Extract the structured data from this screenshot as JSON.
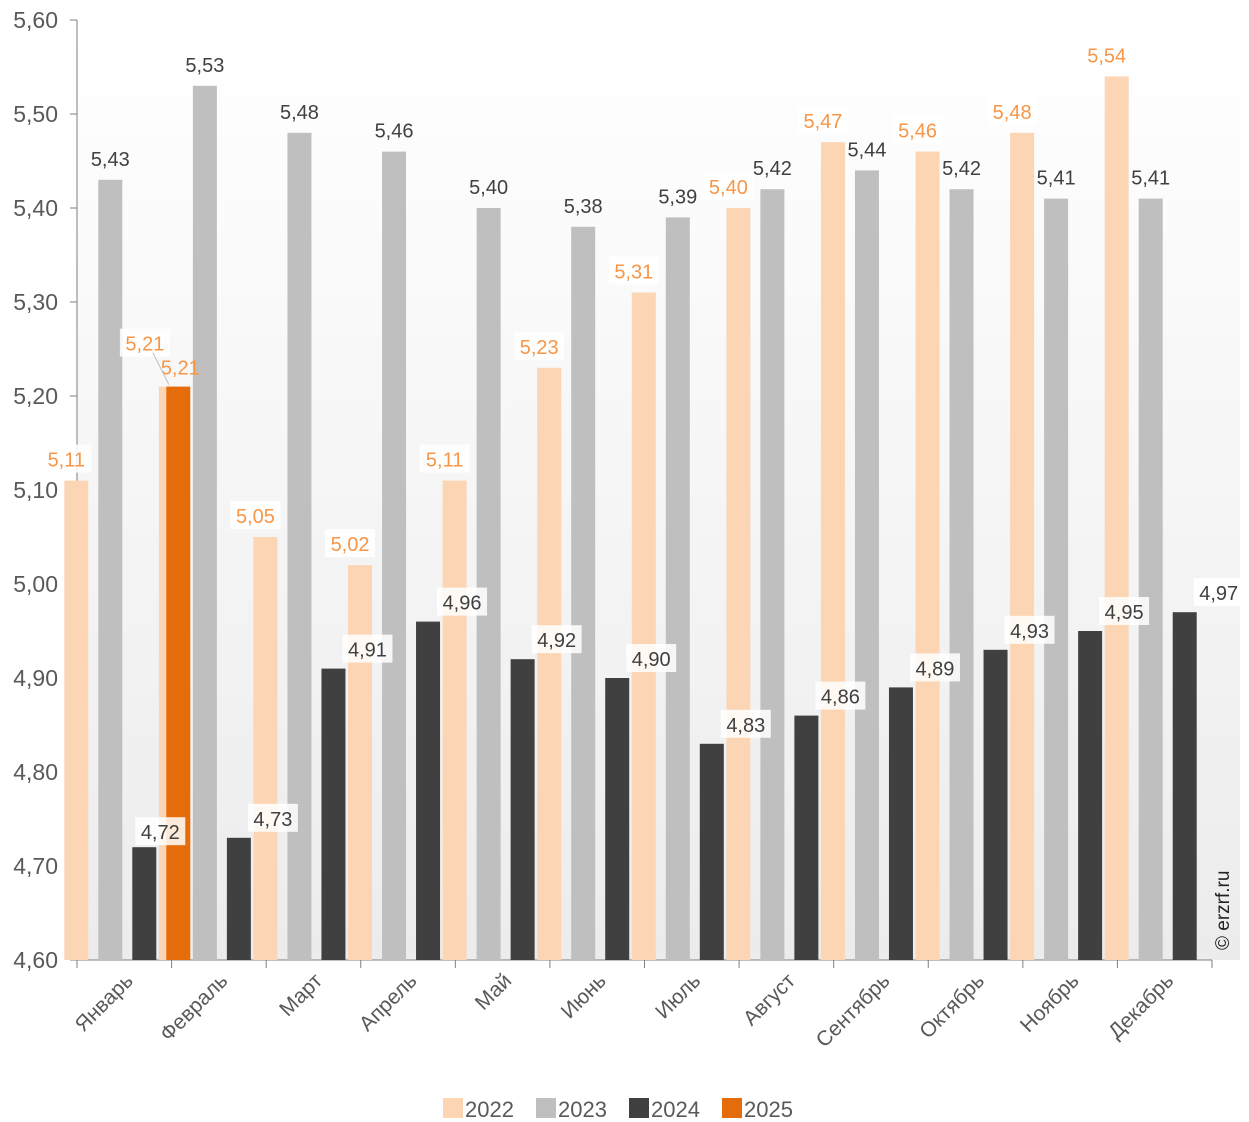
{
  "watermark": "© erzrf.ru",
  "colors": {
    "2022": "#fcd5b4",
    "2023": "#bfbfbf",
    "2024": "#404040",
    "2025": "#e46c0a",
    "label_orange": "#f79646",
    "label_dark": "#404040",
    "axis": "#7f7f7f",
    "bg_top": "#ffffff",
    "bg_bottom": "#ececec"
  },
  "chart_data": {
    "type": "bar",
    "categories": [
      "Январь",
      "Февраль",
      "Март",
      "Апрель",
      "Май",
      "Июнь",
      "Июль",
      "Август",
      "Сентябрь",
      "Октябрь",
      "Ноябрь",
      "Декабрь"
    ],
    "ylim": [
      4.6,
      5.6
    ],
    "yticks": [
      "4,60",
      "4,70",
      "4,80",
      "4,90",
      "5,00",
      "5,10",
      "5,20",
      "5,30",
      "5,40",
      "5,50",
      "5,60"
    ],
    "grid": false,
    "legend_position": "bottom",
    "series": [
      {
        "name": "2022",
        "values": [
          5.11,
          5.21,
          5.05,
          5.02,
          5.11,
          5.23,
          5.31,
          5.4,
          5.47,
          5.46,
          5.48,
          5.54
        ],
        "labels": [
          "5,11",
          "5,21",
          "5,05",
          "5,02",
          "5,11",
          "5,23",
          "5,31",
          "5,40",
          "5,47",
          "5,46",
          "5,48",
          "5,54"
        ]
      },
      {
        "name": "2023",
        "values": [
          5.43,
          5.53,
          5.48,
          5.46,
          5.4,
          5.38,
          5.39,
          5.42,
          5.44,
          5.42,
          5.41,
          5.41
        ],
        "labels": [
          "5,43",
          "5,53",
          "5,48",
          "5,46",
          "5,40",
          "5,38",
          "5,39",
          "5,42",
          "5,44",
          "5,42",
          "5,41",
          "5,41"
        ]
      },
      {
        "name": "2024",
        "values": [
          4.72,
          4.73,
          4.91,
          4.96,
          4.92,
          4.9,
          4.83,
          4.86,
          4.89,
          4.93,
          4.95,
          4.97
        ],
        "labels": [
          "4,72",
          "4,73",
          "4,91",
          "4,96",
          "4,92",
          "4,90",
          "4,83",
          "4,86",
          "4,89",
          "4,93",
          "4,95",
          "4,97"
        ]
      },
      {
        "name": "2025",
        "values": [
          5.21,
          null,
          null,
          null,
          null,
          null,
          null,
          null,
          null,
          null,
          null,
          null
        ],
        "labels": [
          "5,21",
          "",
          "",
          "",
          "",
          "",
          "",
          "",
          "",
          "",
          "",
          ""
        ]
      }
    ]
  }
}
